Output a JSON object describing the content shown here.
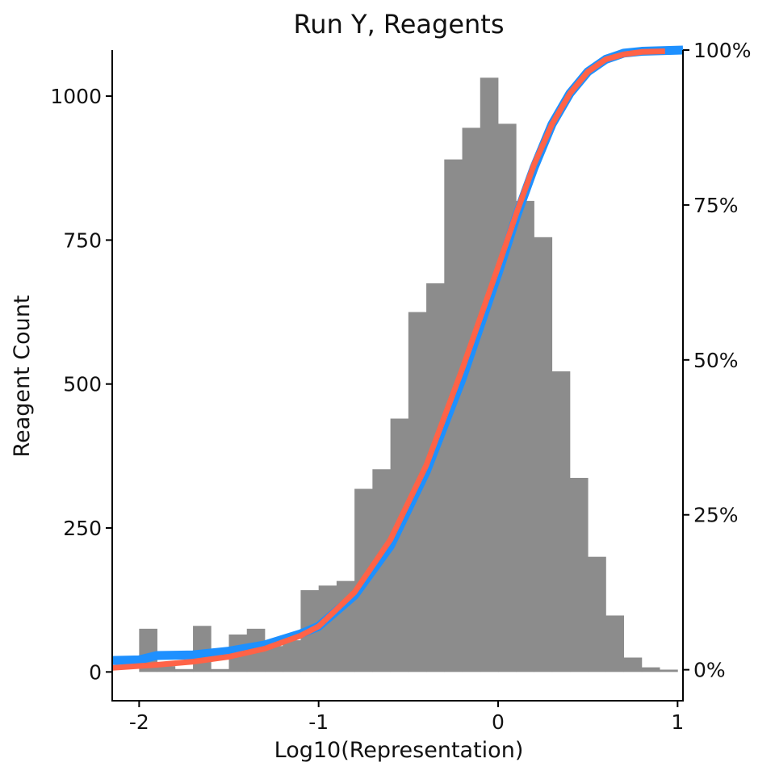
{
  "chart_data": {
    "type": "bar",
    "title": "Run Y, Reagents",
    "xlabel": "Log10(Representation)",
    "ylabel": "Reagent Count",
    "y2label": "",
    "xlim": [
      -2.15,
      1.03
    ],
    "ylim": [
      -50,
      1080
    ],
    "y2lim": [
      -0.05,
      1.0
    ],
    "grid": false,
    "legend": "none",
    "x_ticks": [
      -2,
      -1,
      0,
      1
    ],
    "x_tick_labels": [
      "-2",
      "-1",
      "0",
      "1"
    ],
    "y_ticks": [
      0,
      250,
      500,
      750,
      1000
    ],
    "y_tick_labels": [
      "0",
      "250",
      "500",
      "750",
      "1000"
    ],
    "y2_ticks": [
      0,
      0.25,
      0.5,
      0.75,
      1.0
    ],
    "y2_tick_labels": [
      "0%",
      "25%",
      "50%",
      "75%",
      "100%"
    ],
    "bin_width": 0.1,
    "bin_starts": [
      -2.0,
      -1.9,
      -1.8,
      -1.7,
      -1.6,
      -1.5,
      -1.4,
      -1.3,
      -1.2,
      -1.1,
      -1.0,
      -0.9,
      -0.8,
      -0.7,
      -0.6,
      -0.5,
      -0.4,
      -0.3,
      -0.2,
      -0.1,
      0.0,
      0.1,
      0.2,
      0.3,
      0.4,
      0.5,
      0.6,
      0.7,
      0.8,
      0.9
    ],
    "values": [
      75,
      10,
      5,
      80,
      5,
      65,
      75,
      45,
      55,
      142,
      150,
      158,
      318,
      352,
      440,
      625,
      675,
      890,
      945,
      1032,
      952,
      818,
      755,
      522,
      337,
      200,
      98,
      25,
      8,
      4
    ],
    "series": [
      {
        "name": "",
        "type": "cdf",
        "color": "#1E90FF",
        "x": [
          -2.15,
          -2.0,
          -1.9,
          -1.7,
          -1.5,
          -1.3,
          -1.1,
          -1.0,
          -0.8,
          -0.6,
          -0.4,
          -0.2,
          0.0,
          0.1,
          0.2,
          0.3,
          0.4,
          0.5,
          0.6,
          0.7,
          0.8,
          1.03
        ],
        "values": [
          0.015,
          0.016,
          0.023,
          0.024,
          0.03,
          0.04,
          0.058,
          0.07,
          0.12,
          0.2,
          0.32,
          0.47,
          0.64,
          0.73,
          0.81,
          0.88,
          0.93,
          0.965,
          0.985,
          0.995,
          0.998,
          1.0
        ]
      },
      {
        "name": "",
        "type": "cdf",
        "color": "#FF6347",
        "x": [
          -2.15,
          -1.9,
          -1.7,
          -1.5,
          -1.3,
          -1.1,
          -1.0,
          -0.8,
          -0.6,
          -0.4,
          -0.2,
          0.0,
          0.1,
          0.2,
          0.3,
          0.4,
          0.5,
          0.6,
          0.7,
          0.8,
          0.93
        ],
        "values": [
          0.003,
          0.008,
          0.013,
          0.021,
          0.034,
          0.055,
          0.07,
          0.125,
          0.21,
          0.33,
          0.485,
          0.65,
          0.735,
          0.815,
          0.88,
          0.93,
          0.965,
          0.985,
          0.993,
          0.997,
          0.998
        ]
      }
    ],
    "colors": {
      "bars": "#8C8C8C",
      "axis": "#000000",
      "background": "#FFFFFF"
    }
  }
}
